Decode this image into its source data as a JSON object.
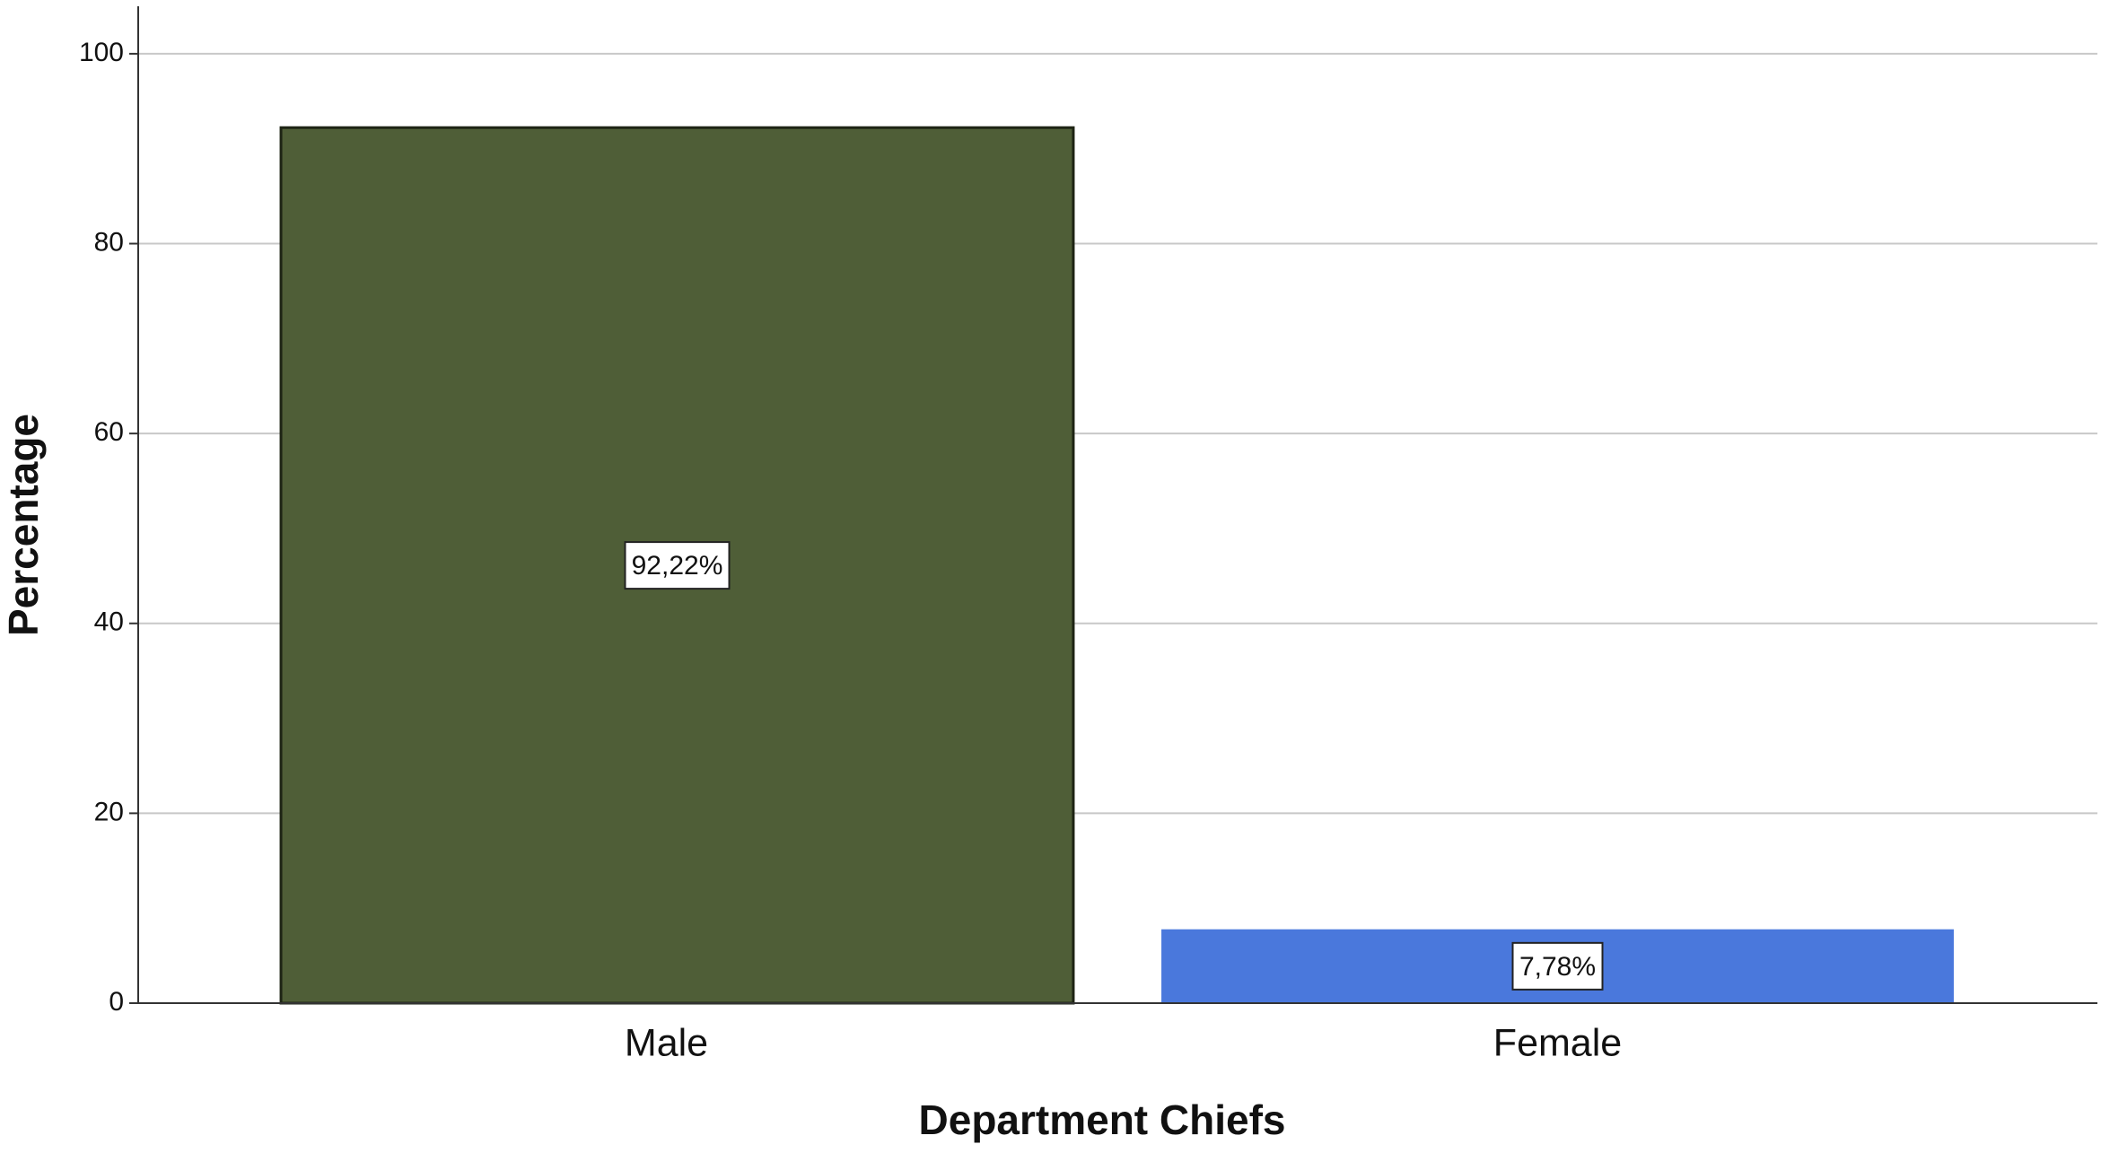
{
  "chart_data": {
    "type": "bar",
    "x_label": "Department Chiefs",
    "y_label": "Percentage",
    "categories": [
      "Male",
      "Female"
    ],
    "values": [
      92.22,
      7.78
    ],
    "value_labels": [
      "92,22%",
      "7,78%"
    ],
    "colors": [
      "#4f5e37",
      "#4a78dc"
    ],
    "ylim": [
      0,
      105
    ],
    "yticks": [
      0,
      20,
      40,
      60,
      80,
      100
    ],
    "grid": true
  }
}
